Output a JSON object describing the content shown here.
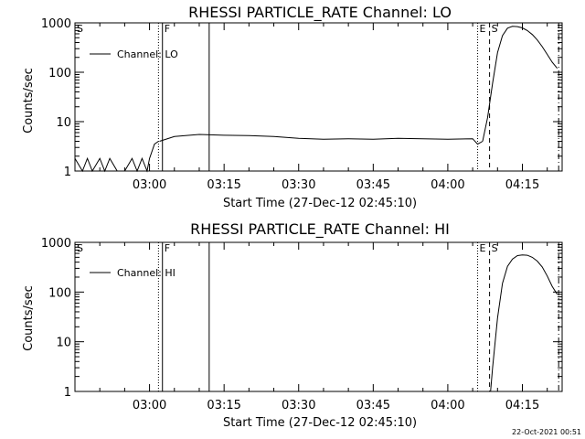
{
  "chart_data": [
    {
      "type": "line",
      "title": "RHESSI PARTICLE_RATE Channel: LO",
      "xlabel": "Start Time (27-Dec-12 02:45:10)",
      "ylabel": "Counts/sec",
      "y_scale": "log",
      "ylim": [
        1,
        1000
      ],
      "y_ticks": [
        1,
        10,
        100,
        1000
      ],
      "y_tick_labels": [
        "1",
        "10",
        "100",
        "1000"
      ],
      "x_ticks_min": [
        15,
        30,
        45,
        60,
        75,
        90
      ],
      "x_tick_labels": [
        "03:00",
        "03:15",
        "03:30",
        "03:45",
        "04:00",
        "04:15"
      ],
      "xlim_min": [
        0,
        98
      ],
      "legend": {
        "label": "Channel: LO",
        "position": "top-left"
      },
      "markers": [
        {
          "label": "S",
          "t_min": 0,
          "style": "solid"
        },
        {
          "label": "",
          "t_min": 16.8,
          "style": "dotted"
        },
        {
          "label": "F",
          "t_min": 17.6,
          "style": "solid"
        },
        {
          "label": "",
          "t_min": 27.0,
          "style": "solid"
        },
        {
          "label": "E",
          "t_min": 81.0,
          "style": "dotted"
        },
        {
          "label": "S",
          "t_min": 83.4,
          "style": "dashed"
        },
        {
          "label": "",
          "t_min": 97.3,
          "style": "dashdot"
        }
      ],
      "series": [
        {
          "segment": "early spikes",
          "t_min": [
            0.0,
            1.5,
            2.5,
            3.5,
            5.0,
            6.0,
            7.0,
            8.5,
            10.0,
            11.5,
            12.5,
            13.5,
            14.5,
            15.0,
            16.0,
            16.8
          ],
          "values": [
            1.8,
            1.0,
            1.8,
            1.0,
            1.8,
            1.0,
            1.8,
            1.0,
            1.0,
            1.8,
            1.0,
            1.8,
            1.0,
            1.8,
            3.5,
            4.0
          ]
        },
        {
          "segment": "plateau",
          "t_min": [
            17.0,
            20.0,
            25.0,
            30.0,
            35.0,
            40.0,
            45.0,
            50.0,
            55.0,
            60.0,
            65.0,
            70.0,
            75.0,
            80.0,
            81.0,
            82.0
          ],
          "values": [
            4.0,
            5.0,
            5.5,
            5.3,
            5.2,
            5.0,
            4.6,
            4.4,
            4.5,
            4.4,
            4.6,
            4.5,
            4.4,
            4.5,
            3.5,
            4.0
          ]
        },
        {
          "segment": "event",
          "t_min": [
            82.0,
            83.0,
            84.0,
            85.0,
            86.0,
            87.0,
            88.0,
            89.0,
            90.0,
            91.0,
            92.0,
            93.0,
            94.0,
            95.0,
            96.0,
            97.0
          ],
          "values": [
            4.0,
            12.0,
            60.0,
            250.0,
            550.0,
            780.0,
            850.0,
            840.0,
            790.0,
            700.0,
            580.0,
            450.0,
            330.0,
            230.0,
            160.0,
            120.0
          ]
        }
      ]
    },
    {
      "type": "line",
      "title": "RHESSI PARTICLE_RATE Channel: HI",
      "xlabel": "Start Time (27-Dec-12 02:45:10)",
      "ylabel": "Counts/sec",
      "y_scale": "log",
      "ylim": [
        1,
        1000
      ],
      "y_ticks": [
        1,
        10,
        100,
        1000
      ],
      "y_tick_labels": [
        "1",
        "10",
        "100",
        "1000"
      ],
      "x_ticks_min": [
        15,
        30,
        45,
        60,
        75,
        90
      ],
      "x_tick_labels": [
        "03:00",
        "03:15",
        "03:30",
        "03:45",
        "04:00",
        "04:15"
      ],
      "xlim_min": [
        0,
        98
      ],
      "legend": {
        "label": "Channel: HI",
        "position": "top-left"
      },
      "markers": [
        {
          "label": "S",
          "t_min": 0,
          "style": "solid"
        },
        {
          "label": "",
          "t_min": 16.8,
          "style": "dotted"
        },
        {
          "label": "F",
          "t_min": 17.6,
          "style": "solid"
        },
        {
          "label": "",
          "t_min": 27.0,
          "style": "solid"
        },
        {
          "label": "E",
          "t_min": 81.0,
          "style": "dotted"
        },
        {
          "label": "S",
          "t_min": 83.4,
          "style": "dashed"
        },
        {
          "label": "",
          "t_min": 97.3,
          "style": "dashdot"
        }
      ],
      "series": [
        {
          "segment": "event",
          "t_min": [
            83.6,
            84.0,
            85.0,
            86.0,
            87.0,
            88.0,
            89.0,
            90.0,
            91.0,
            92.0,
            93.0,
            94.0,
            95.0,
            96.0,
            97.0
          ],
          "values": [
            1.0,
            3.0,
            30.0,
            150.0,
            330.0,
            460.0,
            540.0,
            560.0,
            550.0,
            500.0,
            420.0,
            320.0,
            210.0,
            130.0,
            90.0
          ]
        }
      ]
    }
  ],
  "footer": {
    "timestamp": "22-Oct-2021 00:51"
  }
}
